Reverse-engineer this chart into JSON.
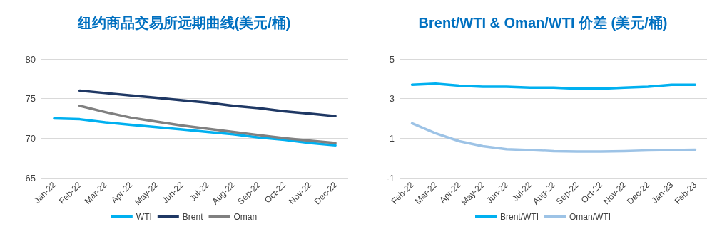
{
  "chart_data": [
    {
      "type": "line",
      "title": "纽约商品交易所远期曲线(美元/桶)",
      "categories": [
        "Jan-22",
        "Feb-22",
        "Mar-22",
        "Apr-22",
        "May-22",
        "Jun-22",
        "Jul-22",
        "Aug-22",
        "Sep-22",
        "Oct-22",
        "Nov-22",
        "Dec-22"
      ],
      "series": [
        {
          "name": "WTI",
          "color": "#00b0f0",
          "values": [
            72.5,
            72.4,
            72.0,
            71.7,
            71.4,
            71.1,
            70.8,
            70.5,
            70.1,
            69.8,
            69.4,
            69.1
          ]
        },
        {
          "name": "Brent",
          "color": "#1f3864",
          "values": [
            null,
            76.0,
            75.7,
            75.4,
            75.1,
            74.8,
            74.5,
            74.1,
            73.8,
            73.4,
            73.1,
            72.8
          ]
        },
        {
          "name": "Oman",
          "color": "#808080",
          "values": [
            null,
            74.1,
            73.3,
            72.6,
            72.1,
            71.6,
            71.2,
            70.8,
            70.4,
            70.0,
            69.7,
            69.4
          ]
        }
      ],
      "ylim": [
        65,
        80
      ],
      "yticks": [
        65,
        70,
        75,
        80
      ],
      "grid": "y",
      "legend": "bottom",
      "marker": "none"
    },
    {
      "type": "line",
      "title": "Brent/WTI & Oman/WTI 价差 (美元/桶)",
      "categories": [
        "Feb-22",
        "Mar-22",
        "Apr-22",
        "May-22",
        "Jun-22",
        "Jul-22",
        "Aug-22",
        "Sep-22",
        "Oct-22",
        "Nov-22",
        "Dec-22",
        "Jan-23",
        "Feb-23"
      ],
      "series": [
        {
          "name": "Brent/WTI",
          "color": "#00b0f0",
          "values": [
            3.7,
            3.75,
            3.65,
            3.6,
            3.6,
            3.55,
            3.55,
            3.5,
            3.5,
            3.55,
            3.6,
            3.7,
            3.7
          ]
        },
        {
          "name": "Oman/WTI",
          "color": "#9dc3e6",
          "values": [
            1.75,
            1.25,
            0.85,
            0.6,
            0.45,
            0.4,
            0.35,
            0.33,
            0.33,
            0.35,
            0.38,
            0.4,
            0.42
          ]
        }
      ],
      "ylim": [
        -1,
        5
      ],
      "yticks": [
        -1,
        1,
        3,
        5
      ],
      "grid": "y",
      "legend": "bottom",
      "marker": "none"
    }
  ]
}
